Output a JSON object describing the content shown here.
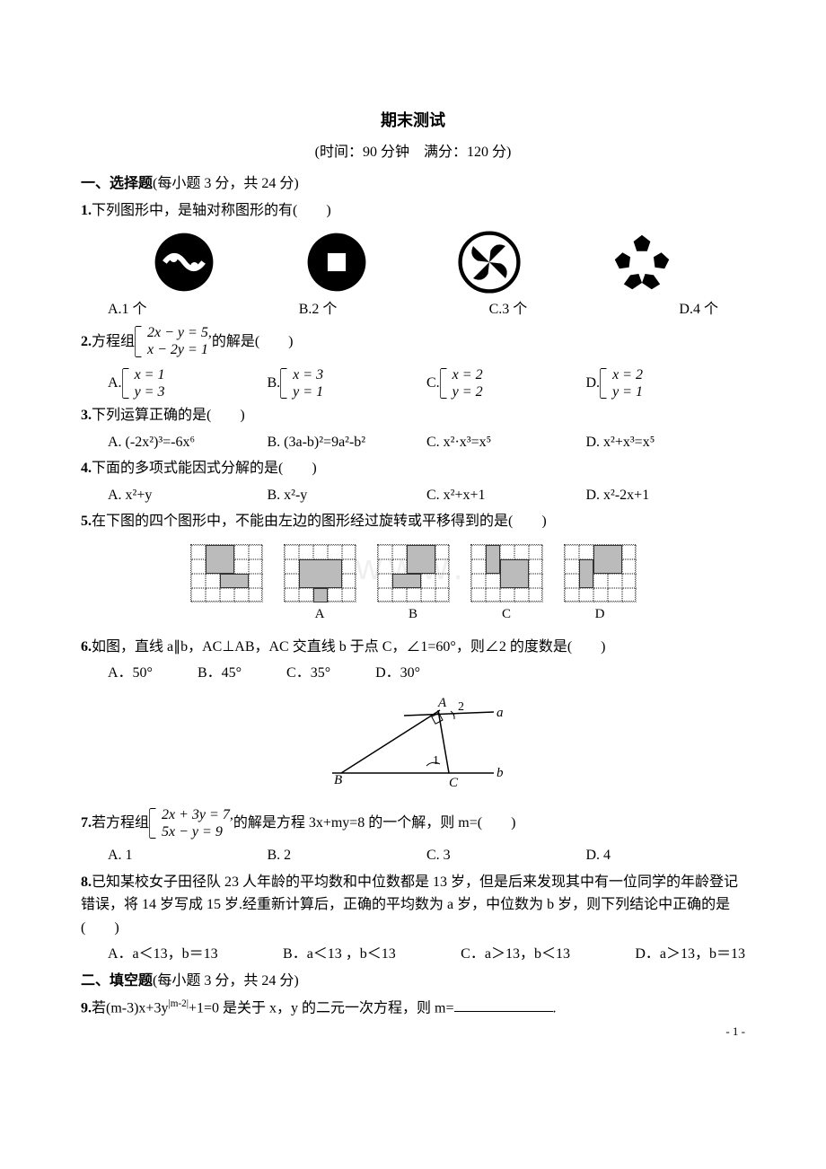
{
  "title": "期末测试",
  "subtitle": "(时间：90 分钟　满分：120 分)",
  "section1": {
    "head": "一、选择题",
    "note": "(每小题 3 分，共 24 分)"
  },
  "q1": {
    "text": "下列图形中，是轴对称图形的有(　　)",
    "opts": [
      "A.1 个",
      "B.2 个",
      "C.3 个",
      "D.4 个"
    ]
  },
  "q2": {
    "prefix": "方程组",
    "eq1": "2x − y = 5,",
    "eq2": "x − 2y = 1",
    "suffix": "的解是(　　)",
    "optA": {
      "l": "A.",
      "e1": "x = 1",
      "e2": "y = 3"
    },
    "optB": {
      "l": "B.",
      "e1": "x = 3",
      "e2": "y = 1"
    },
    "optC": {
      "l": "C.",
      "e1": "x = 2",
      "e2": "y = 2"
    },
    "optD": {
      "l": "D.",
      "e1": "x = 2",
      "e2": "y = 1"
    }
  },
  "q3": {
    "text": "下列运算正确的是(　　)",
    "opts": [
      "A. (-2x²)³=-6x⁶",
      "B. (3a-b)²=9a²-b²",
      "C. x²·x³=x⁵",
      "D. x²+x³=x⁵"
    ]
  },
  "q4": {
    "text": "下面的多项式能因式分解的是(　　)",
    "opts": [
      "A. x²+y",
      "B. x²-y",
      "C. x²+x+1",
      "D. x²-2x+1"
    ]
  },
  "q5": {
    "text": "在下图的四个图形中，不能由左边的图形经过旋转或平移得到的是(　　)",
    "labels": [
      "A",
      "B",
      "C",
      "D"
    ]
  },
  "q6": {
    "text": "如图，直线 a∥b，AC⊥AB，AC 交直线 b 于点 C，∠1=60°，则∠2 的度数是(　　)",
    "opts": [
      "A．50°",
      "B．45°",
      "C．35°",
      "D．30°"
    ],
    "labels": {
      "A": "A",
      "B": "B",
      "C": "C",
      "a": "a",
      "b": "b",
      "ang1": "1",
      "ang2": "2"
    }
  },
  "q7": {
    "prefix": "若方程组",
    "eq1": "2x + 3y = 7,",
    "eq2": "5x − y = 9",
    "suffix": "的解是方程 3x+my=8 的一个解，则 m=(　　)",
    "opts": [
      "A. 1",
      "B. 2",
      "C. 3",
      "D. 4"
    ]
  },
  "q8": {
    "text": "已知某校女子田径队 23 人年龄的平均数和中位数都是 13 岁，但是后来发现其中有一位同学的年龄登记错误，将 14 岁写成 15 岁.经重新计算后，正确的平均数为 a 岁，中位数为 b 岁，则下列结论中正确的是(　　)",
    "opts": [
      "A．a＜13，b＝13",
      "B．a＜13 ，b＜13",
      "C．a＞13，b＜13",
      "D．a＞13，b＝13"
    ]
  },
  "section2": {
    "head": "二、填空题",
    "note": "(每小题 3 分，共 24 分)"
  },
  "q9": {
    "p1": "若(m-3)x+3y",
    "exp": "|m-2|",
    "p2": "+1=0 是关于 x，y 的二元一次方程，则 m=",
    "p3": "."
  },
  "pagenum": "- 1 -"
}
